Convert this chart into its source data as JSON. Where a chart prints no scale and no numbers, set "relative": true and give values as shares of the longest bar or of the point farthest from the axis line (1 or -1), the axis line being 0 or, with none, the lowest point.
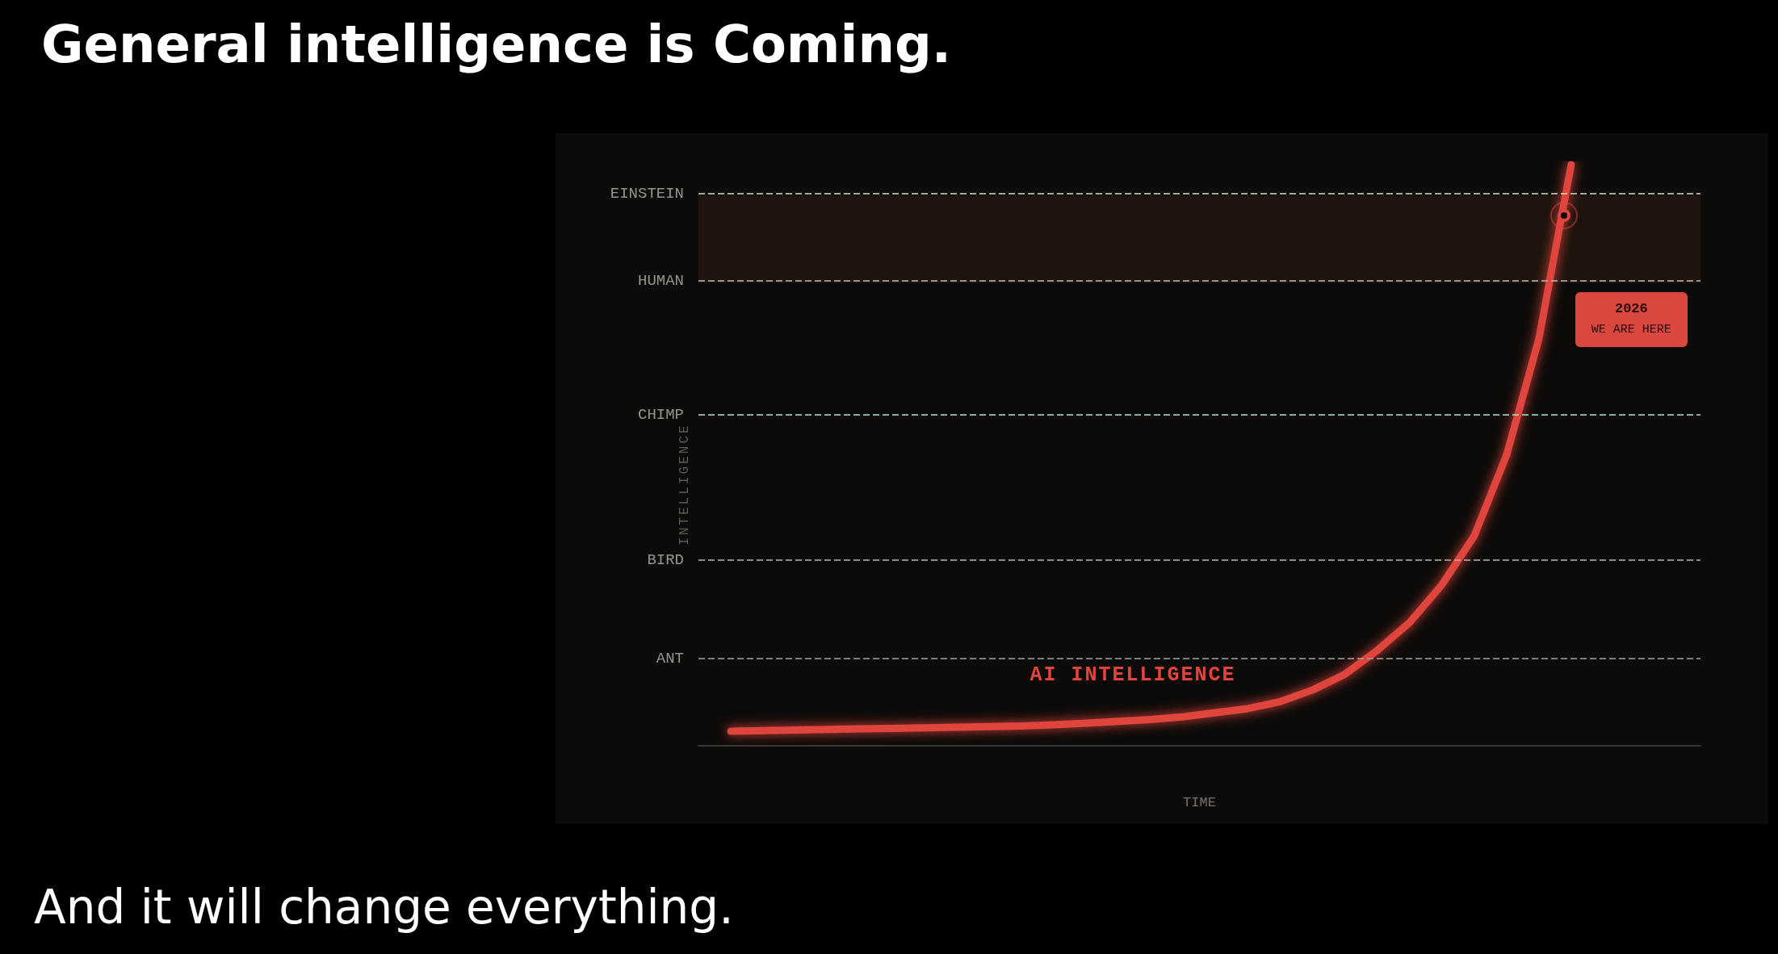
{
  "chart_data": {
    "type": "line",
    "title": "General intelligence is Coming.",
    "xlabel": "TIME",
    "ylabel": "INTELLIGENCE",
    "relative": true,
    "categories": [
      null,
      null,
      null,
      null,
      null,
      null,
      null,
      null,
      null,
      null,
      null,
      null,
      null,
      null,
      null,
      null,
      null,
      null,
      null,
      null,
      null,
      null,
      null,
      null,
      null,
      null,
      null,
      null,
      null,
      null,
      null,
      null
    ],
    "series": [
      {
        "name": "AI INTELLIGENCE",
        "color": "#e0443c",
        "values": [
          null,
          0.025,
          0.026,
          0.027,
          0.028,
          0.029,
          0.03,
          0.031,
          0.032,
          0.033,
          0.034,
          0.036,
          0.039,
          0.042,
          0.045,
          0.05,
          0.057,
          0.064,
          0.076,
          0.096,
          0.123,
          0.164,
          0.212,
          0.277,
          0.361,
          0.5,
          0.7,
          1,
          null,
          null,
          null,
          null
        ]
      }
    ],
    "ref_lines": [
      {
        "axis": "y",
        "value": 0.947,
        "label": "EINSTEIN",
        "color": "#d8cfb0",
        "line_style": "dashed"
      },
      {
        "axis": "y",
        "value": 0.797,
        "label": "HUMAN",
        "color": "#b8b2a8",
        "line_style": "dashed"
      },
      {
        "axis": "y",
        "value": 0.573,
        "label": "CHIMP",
        "color": "#a8d8c0",
        "line_style": "dashed"
      },
      {
        "axis": "y",
        "value": 0.319,
        "label": "BIRD",
        "color": "#b0aca6",
        "line_style": "dashed"
      },
      {
        "axis": "y",
        "value": 0.15,
        "label": "ANT",
        "color": "#a09c96",
        "line_style": "dashed"
      }
    ],
    "bands": [
      {
        "axis": "y",
        "from": 0.797,
        "to": 0.947,
        "color": "#1e140d"
      }
    ],
    "annotations": [
      "2026\nWE ARE HERE",
      "And it will change everything."
    ],
    "grid": false,
    "legend": false,
    "marker": "none",
    "line_style": "solid"
  }
}
